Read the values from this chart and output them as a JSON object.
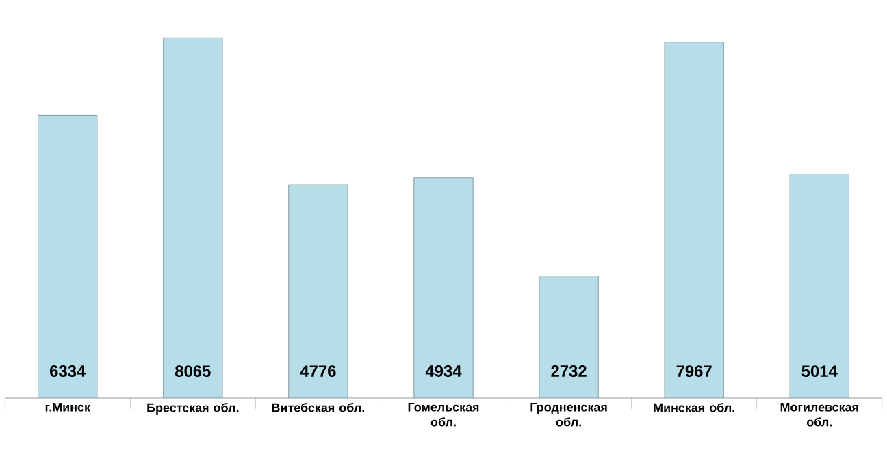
{
  "chart_data": {
    "type": "bar",
    "categories": [
      "г.Минск",
      "Брестская обл.",
      "Витебская обл.",
      "Гомельская обл.",
      "Гродненская обл.",
      "Минская обл.",
      "Могилевская обл."
    ],
    "values": [
      6334,
      8065,
      4776,
      4934,
      2732,
      7967,
      5014
    ],
    "color": "#b7dde8",
    "data_labels": true
  }
}
